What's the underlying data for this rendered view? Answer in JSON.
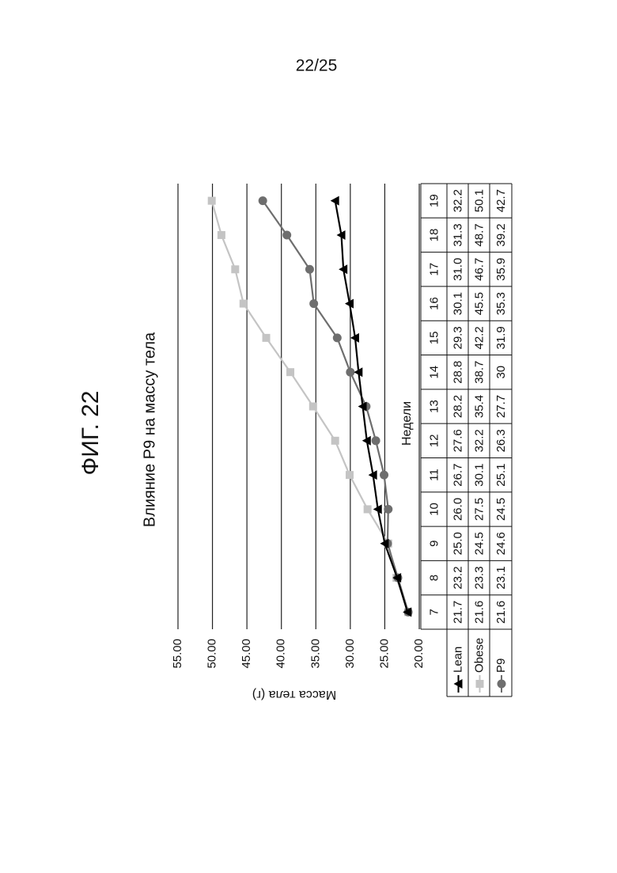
{
  "page_number": "22/25",
  "figure_label": "ФИГ. 22",
  "chart_data": {
    "type": "line",
    "title": "Влияние P9 на массу тела",
    "y_label": "Масса тела (г)",
    "x_label": "Недели",
    "categories": [
      "7",
      "8",
      "9",
      "10",
      "11",
      "12",
      "13",
      "14",
      "15",
      "16",
      "17",
      "18",
      "19"
    ],
    "series": [
      {
        "name": "Lean",
        "color": "#000000",
        "marker": "triangle",
        "values": [
          21.7,
          23.2,
          25.0,
          26.0,
          26.7,
          27.6,
          28.2,
          28.8,
          29.3,
          30.1,
          31.0,
          31.3,
          32.2
        ],
        "value_labels": [
          "21.7",
          "23.2",
          "25.0",
          "26.0",
          "26.7",
          "27.6",
          "28.2",
          "28.8",
          "29.3",
          "30.1",
          "31.0",
          "31.3",
          "32.2"
        ]
      },
      {
        "name": "Obese",
        "color": "#c4c4c4",
        "marker": "square",
        "values": [
          21.6,
          23.3,
          24.5,
          27.5,
          30.1,
          32.2,
          35.4,
          38.7,
          42.2,
          45.5,
          46.7,
          48.7,
          50.1
        ],
        "value_labels": [
          "21.6",
          "23.3",
          "24.5",
          "27.5",
          "30.1",
          "32.2",
          "35.4",
          "38.7",
          "42.2",
          "45.5",
          "46.7",
          "48.7",
          "50.1"
        ]
      },
      {
        "name": "P9",
        "color": "#6e6e6e",
        "marker": "circle",
        "values": [
          21.6,
          23.1,
          24.6,
          24.5,
          25.1,
          26.3,
          27.7,
          30,
          31.9,
          35.3,
          35.9,
          39.2,
          42.7
        ],
        "value_labels": [
          "21.6",
          "23.1",
          "24.6",
          "24.5",
          "25.1",
          "26.3",
          "27.7",
          "30",
          "31.9",
          "35.3",
          "35.9",
          "39.2",
          "42.7"
        ]
      }
    ],
    "ylim": [
      20,
      55
    ],
    "yticks": [
      {
        "value": 20,
        "label": "20.00"
      },
      {
        "value": 25,
        "label": "25.00"
      },
      {
        "value": 30,
        "label": "30.00"
      },
      {
        "value": 35,
        "label": "35.00"
      },
      {
        "value": 40,
        "label": "40.00"
      },
      {
        "value": 45,
        "label": "45.00"
      },
      {
        "value": 50,
        "label": "50.00"
      },
      {
        "value": 55,
        "label": "55.00"
      }
    ],
    "grid": true
  }
}
